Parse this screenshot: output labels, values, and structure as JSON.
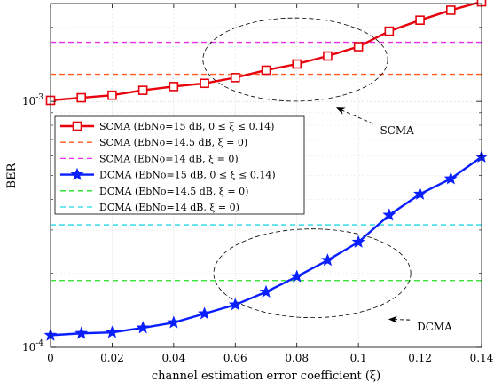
{
  "chart_data": {
    "type": "line",
    "xlabel": "channel estimation error coefficient (ξ)",
    "ylabel": "BER",
    "xlim": [
      0,
      0.14
    ],
    "ylim": [
      0.0001,
      0.0025
    ],
    "y_scale": "log",
    "grid": true,
    "legend_position": "center-left",
    "x_ticks": [
      0,
      0.02,
      0.04,
      0.06,
      0.08,
      0.1,
      0.12,
      0.14
    ],
    "x_tick_labels": [
      "0",
      "0.02",
      "0.04",
      "0.06",
      "0.08",
      "0.1",
      "0.12",
      "0.14"
    ],
    "y_ticks": [
      {
        "value": 0.001,
        "base": "10",
        "exp": "-3"
      },
      {
        "value": 0.0001,
        "base": "10",
        "exp": "-4"
      }
    ],
    "x": [
      0,
      0.01,
      0.02,
      0.03,
      0.04,
      0.05,
      0.06,
      0.07,
      0.08,
      0.09,
      0.1,
      0.11,
      0.12,
      0.13,
      0.14
    ],
    "series": [
      {
        "name": "SCMA (EbNo=15 dB, 0 ≤ ξ ≤ 0.14)",
        "kind": "curve",
        "marker": "square",
        "color": "#e8000b",
        "values": [
          0.00101,
          0.001035,
          0.00106,
          0.00111,
          0.00115,
          0.001185,
          0.00125,
          0.00134,
          0.00142,
          0.00153,
          0.00167,
          0.00193,
          0.00214,
          0.00235,
          0.00254
        ]
      },
      {
        "name": "SCMA (EbNo=14.5 dB, ξ = 0)",
        "kind": "hline",
        "color": "#ff5a1f",
        "value": 0.00129
      },
      {
        "name": "SCMA (EbNo=14 dB, ξ = 0)",
        "kind": "hline",
        "color": "#e62ee6",
        "value": 0.00174
      },
      {
        "name": "DCMA (EbNo=15 dB, 0 ≤ ξ ≤ 0.14)",
        "kind": "curve",
        "marker": "star",
        "color": "#0a1fff",
        "values": [
          0.000112,
          0.000114,
          0.000115,
          0.00012,
          0.000126,
          0.000137,
          0.000149,
          0.000168,
          0.000194,
          0.000226,
          0.000268,
          0.000345,
          0.00042,
          0.000485,
          0.000595
        ]
      },
      {
        "name": "DCMA (EbNo=14.5 dB, ξ = 0)",
        "kind": "hline",
        "color": "#1ee01e",
        "value": 0.000187
      },
      {
        "name": "DCMA (EbNo=14 dB, ξ = 0)",
        "kind": "hline",
        "color": "#22d6e6",
        "value": 0.000315
      }
    ],
    "annotations": [
      {
        "text": "SCMA",
        "ellipse_center": [
          0.0795,
          0.00148
        ],
        "ellipse_x_halfwidth": 0.03,
        "arrow_to": [
          0.093,
          0.00094
        ],
        "label_at": [
          0.107,
          0.000735
        ]
      },
      {
        "text": "DCMA",
        "ellipse_center": [
          0.085,
          0.0002
        ],
        "ellipse_x_halfwidth": 0.032,
        "arrow_to": [
          0.11,
          0.00013
        ],
        "label_at": [
          0.119,
          0.000117
        ]
      }
    ]
  }
}
